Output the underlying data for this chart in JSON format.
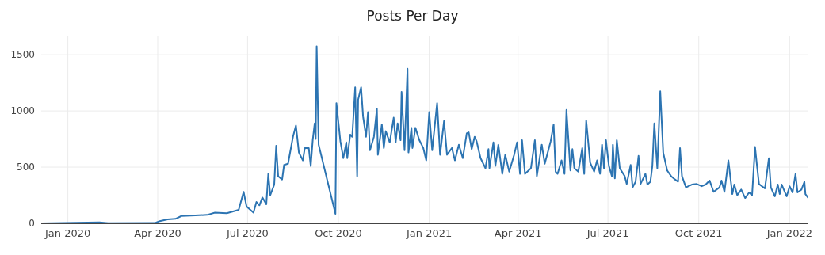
{
  "chart_data": {
    "type": "line",
    "title": "Posts Per Day",
    "color": "#2c74b2",
    "grid": true,
    "line_style": "solid",
    "marker": "none",
    "xlim": [
      "2019-12-05",
      "2022-01-20"
    ],
    "xticks": [
      {
        "value": "2020-01-01",
        "label": "Jan 2020"
      },
      {
        "value": "2020-04-01",
        "label": "Apr 2020"
      },
      {
        "value": "2020-07-01",
        "label": "Jul 2020"
      },
      {
        "value": "2020-10-01",
        "label": "Oct 2020"
      },
      {
        "value": "2021-01-01",
        "label": "Jan 2021"
      },
      {
        "value": "2021-04-01",
        "label": "Apr 2021"
      },
      {
        "value": "2021-07-01",
        "label": "Jul 2021"
      },
      {
        "value": "2021-10-01",
        "label": "Oct 2021"
      },
      {
        "value": "2022-01-01",
        "label": "Jan 2022"
      }
    ],
    "ylim": [
      0,
      1670
    ],
    "yticks": [
      0,
      500,
      1000,
      1500
    ],
    "x": [
      "2019-12-05",
      "2020-02-02",
      "2020-02-11",
      "2020-03-29",
      "2020-04-03",
      "2020-04-11",
      "2020-04-19",
      "2020-04-25",
      "2020-05-09",
      "2020-05-21",
      "2020-05-29",
      "2020-06-10",
      "2020-06-22",
      "2020-06-27",
      "2020-06-30",
      "2020-07-07",
      "2020-07-10",
      "2020-07-13",
      "2020-07-16",
      "2020-07-20",
      "2020-07-22",
      "2020-07-24",
      "2020-07-28",
      "2020-07-30",
      "2020-08-01",
      "2020-08-05",
      "2020-08-07",
      "2020-08-11",
      "2020-08-16",
      "2020-08-19",
      "2020-08-22",
      "2020-08-26",
      "2020-08-28",
      "2020-09-01",
      "2020-09-03",
      "2020-09-05",
      "2020-09-07",
      "2020-09-08",
      "2020-09-09",
      "2020-09-11",
      "2020-09-28",
      "2020-09-29",
      "2020-10-03",
      "2020-10-06",
      "2020-10-09",
      "2020-10-10",
      "2020-10-13",
      "2020-10-15",
      "2020-10-18",
      "2020-10-20",
      "2020-10-21",
      "2020-10-24",
      "2020-10-26",
      "2020-10-29",
      "2020-10-31",
      "2020-11-02",
      "2020-11-06",
      "2020-11-09",
      "2020-11-10",
      "2020-11-14",
      "2020-11-16",
      "2020-11-18",
      "2020-11-22",
      "2020-11-26",
      "2020-11-28",
      "2020-11-30",
      "2020-12-03",
      "2020-12-04",
      "2020-12-07",
      "2020-12-10",
      "2020-12-11",
      "2020-12-14",
      "2020-12-15",
      "2020-12-18",
      "2020-12-22",
      "2020-12-26",
      "2020-12-29",
      "2021-01-01",
      "2021-01-04",
      "2021-01-09",
      "2021-01-12",
      "2021-01-16",
      "2021-01-19",
      "2021-01-24",
      "2021-01-27",
      "2021-01-31",
      "2021-02-04",
      "2021-02-08",
      "2021-02-10",
      "2021-02-13",
      "2021-02-16",
      "2021-02-18",
      "2021-02-22",
      "2021-02-27",
      "2021-03-02",
      "2021-03-03",
      "2021-03-07",
      "2021-03-09",
      "2021-03-12",
      "2021-03-16",
      "2021-03-19",
      "2021-03-23",
      "2021-03-28",
      "2021-03-31",
      "2021-04-03",
      "2021-04-05",
      "2021-04-08",
      "2021-04-14",
      "2021-04-18",
      "2021-04-20",
      "2021-04-25",
      "2021-04-28",
      "2021-05-04",
      "2021-05-07",
      "2021-05-09",
      "2021-05-11",
      "2021-05-15",
      "2021-05-18",
      "2021-05-20",
      "2021-05-24",
      "2021-05-26",
      "2021-05-28",
      "2021-06-01",
      "2021-06-05",
      "2021-06-07",
      "2021-06-09",
      "2021-06-13",
      "2021-06-17",
      "2021-06-20",
      "2021-06-23",
      "2021-06-25",
      "2021-06-27",
      "2021-06-29",
      "2021-07-02",
      "2021-07-05",
      "2021-07-06",
      "2021-07-08",
      "2021-07-10",
      "2021-07-13",
      "2021-07-18",
      "2021-07-20",
      "2021-07-24",
      "2021-07-26",
      "2021-07-29",
      "2021-08-01",
      "2021-08-03",
      "2021-08-08",
      "2021-08-10",
      "2021-08-13",
      "2021-08-15",
      "2021-08-17",
      "2021-08-20",
      "2021-08-23",
      "2021-08-26",
      "2021-08-30",
      "2021-09-03",
      "2021-09-07",
      "2021-09-10",
      "2021-09-12",
      "2021-09-14",
      "2021-09-18",
      "2021-09-24",
      "2021-09-29",
      "2021-10-04",
      "2021-10-08",
      "2021-10-12",
      "2021-10-16",
      "2021-10-22",
      "2021-10-24",
      "2021-10-27",
      "2021-10-31",
      "2021-11-04",
      "2021-11-06",
      "2021-11-09",
      "2021-11-13",
      "2021-11-17",
      "2021-11-21",
      "2021-11-24",
      "2021-11-27",
      "2021-11-29",
      "2021-12-01",
      "2021-12-07",
      "2021-12-11",
      "2021-12-13",
      "2021-12-17",
      "2021-12-20",
      "2021-12-22",
      "2021-12-24",
      "2021-12-29",
      "2022-01-01",
      "2022-01-04",
      "2022-01-07",
      "2022-01-09",
      "2022-01-13",
      "2022-01-16",
      "2022-01-17",
      "2022-01-20"
    ],
    "values": [
      0,
      8,
      2,
      3,
      20,
      35,
      40,
      65,
      70,
      75,
      95,
      90,
      120,
      280,
      150,
      95,
      190,
      160,
      230,
      170,
      440,
      250,
      345,
      690,
      420,
      390,
      520,
      530,
      770,
      870,
      630,
      560,
      670,
      670,
      510,
      740,
      890,
      750,
      1575,
      700,
      85,
      1070,
      730,
      580,
      720,
      580,
      790,
      770,
      1210,
      420,
      1100,
      1210,
      950,
      770,
      990,
      650,
      770,
      1020,
      610,
      880,
      670,
      820,
      720,
      940,
      720,
      890,
      740,
      1170,
      650,
      1375,
      630,
      850,
      670,
      850,
      740,
      670,
      560,
      990,
      650,
      1070,
      610,
      910,
      610,
      670,
      560,
      700,
      580,
      800,
      810,
      660,
      770,
      730,
      580,
      490,
      660,
      490,
      720,
      510,
      700,
      440,
      610,
      460,
      610,
      720,
      440,
      740,
      440,
      490,
      740,
      420,
      700,
      530,
      730,
      880,
      460,
      440,
      560,
      440,
      1010,
      470,
      660,
      490,
      460,
      670,
      440,
      915,
      540,
      460,
      560,
      440,
      700,
      490,
      740,
      510,
      420,
      700,
      400,
      740,
      490,
      420,
      350,
      520,
      320,
      370,
      600,
      350,
      440,
      345,
      370,
      510,
      890,
      490,
      1175,
      630,
      470,
      420,
      390,
      370,
      670,
      420,
      320,
      345,
      350,
      330,
      345,
      380,
      280,
      320,
      380,
      280,
      560,
      260,
      345,
      250,
      300,
      225,
      275,
      250,
      680,
      510,
      350,
      310,
      580,
      320,
      240,
      345,
      260,
      345,
      240,
      330,
      275,
      440,
      275,
      300,
      370,
      260,
      225
    ]
  }
}
